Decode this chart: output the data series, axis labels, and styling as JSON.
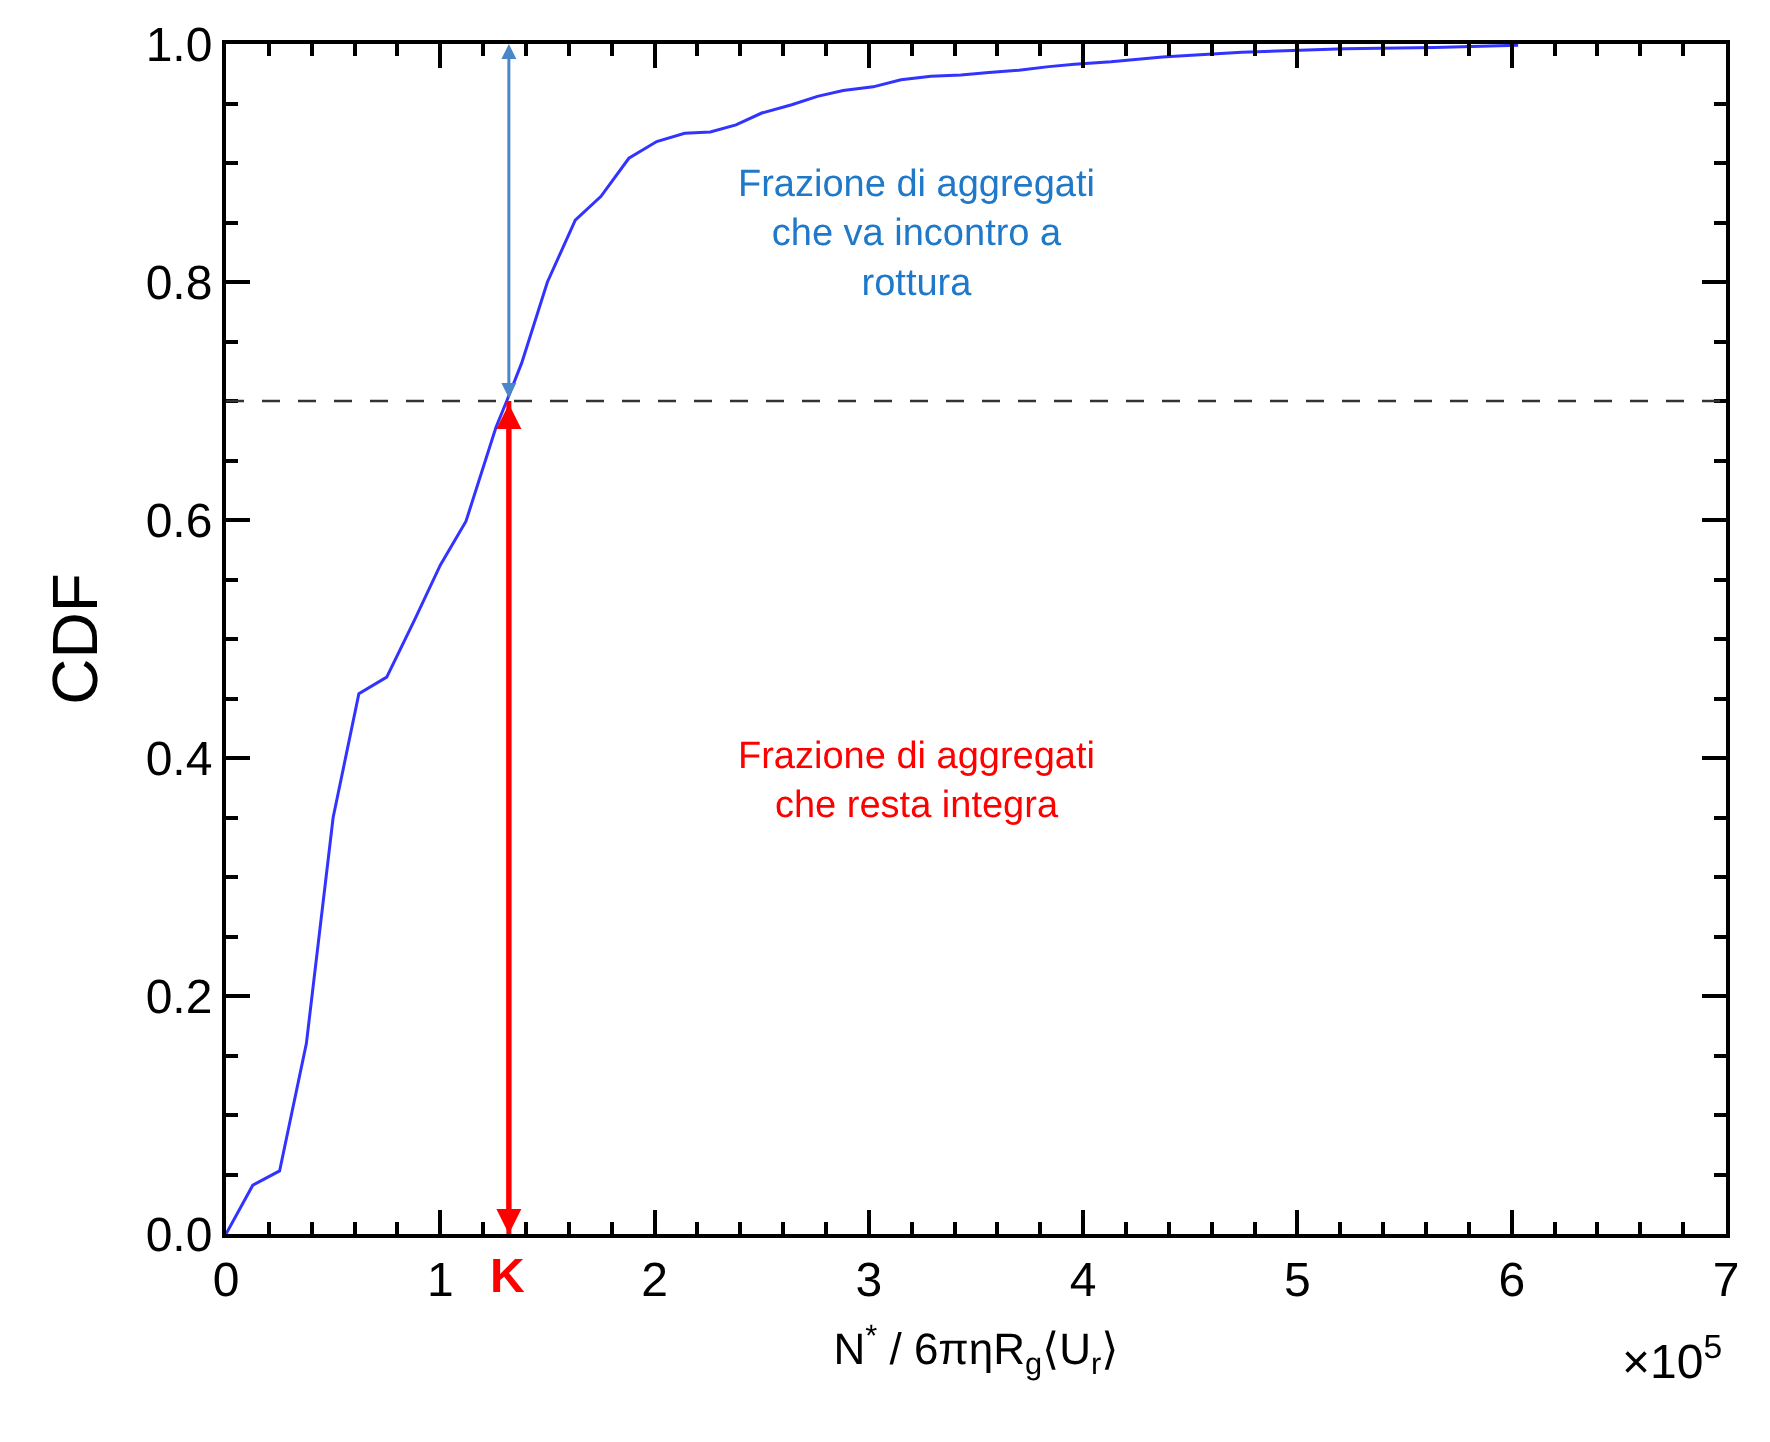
{
  "chart_data": {
    "type": "line",
    "ylabel": "CDF",
    "xlabel": "N$^{*}$ / 6πηR$_{g}$⟨U$_{r}$⟩",
    "x": [
      0,
      0.125,
      0.25,
      0.375,
      0.5,
      0.62,
      0.75,
      0.88,
      1.0,
      1.12,
      1.26,
      1.31,
      1.38,
      1.5,
      1.63,
      1.75,
      1.88,
      2.01,
      2.14,
      2.26,
      2.38,
      2.5,
      2.64,
      2.76,
      2.88,
      3.02,
      3.15,
      3.29,
      3.43,
      3.56,
      3.7,
      3.84,
      3.96,
      4.13,
      4.37,
      4.74,
      5.22,
      5.64,
      6.03
    ],
    "series": [
      {
        "color": "#3333ff",
        "values": [
          0,
          0.041,
          0.053,
          0.16,
          0.35,
          0.454,
          0.468,
          0.516,
          0.562,
          0.599,
          0.678,
          0.7,
          0.732,
          0.8,
          0.852,
          0.872,
          0.904,
          0.918,
          0.925,
          0.926,
          0.932,
          0.942,
          0.949,
          0.956,
          0.961,
          0.964,
          0.97,
          0.973,
          0.974,
          0.976,
          0.978,
          0.981,
          0.983,
          0.985,
          0.989,
          0.993,
          0.996,
          0.997,
          0.999
        ]
      }
    ],
    "xlim": [
      0,
      7
    ],
    "xticks": [
      0,
      1,
      2,
      3,
      4,
      5,
      6,
      7
    ],
    "ylim": [
      0,
      1
    ],
    "yticks": [
      {
        "value": 0,
        "label": "0.0"
      },
      {
        "value": 0.2,
        "label": "0.2"
      },
      {
        "value": 0.4,
        "label": "0.4"
      },
      {
        "value": 0.6,
        "label": "0.6"
      },
      {
        "value": 0.8,
        "label": "0.8"
      },
      {
        "value": 1.0,
        "label": "1.0"
      }
    ],
    "marker": "none",
    "line_style": "solid",
    "ref_lines": [
      {
        "axis": "y",
        "value": 0.7,
        "color": "#333333",
        "line_style": "dashed"
      },
      {
        "axis": "x",
        "value": 1.32,
        "label": "K",
        "color": "#ff0000"
      }
    ],
    "annotations": [
      "Frazione di aggregati che va incontro a rottura",
      "Frazione di aggregati che resta integra",
      "×10$^{5}$"
    ]
  }
}
